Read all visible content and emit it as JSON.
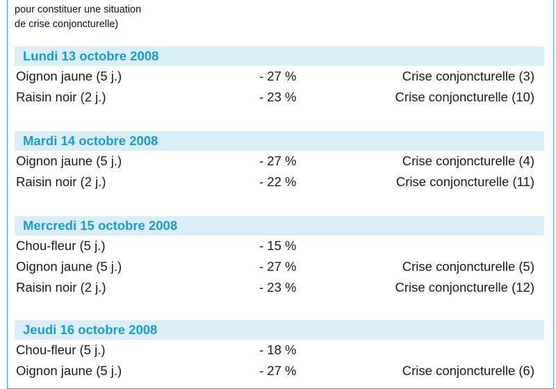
{
  "intro": {
    "line1": "pour constituer une situation",
    "line2": "de crise conjoncturelle)"
  },
  "sections": [
    {
      "day": "Lundi 13 octobre 2008",
      "rows": [
        {
          "product": "Oignon jaune (5 j.)",
          "variation": "- 27 %",
          "status": "Crise conjoncturelle (3)"
        },
        {
          "product": "Raisin noir (2 j.)",
          "variation": "- 23 %",
          "status": "Crise conjoncturelle (10)"
        }
      ]
    },
    {
      "day": "Mardi 14 octobre 2008",
      "rows": [
        {
          "product": "Oignon jaune (5 j.)",
          "variation": "- 27 %",
          "status": "Crise conjoncturelle (4)"
        },
        {
          "product": "Raisin noir (2 j.)",
          "variation": "- 22 %",
          "status": "Crise conjoncturelle (11)"
        }
      ]
    },
    {
      "day": "Mercredi 15 octobre 2008",
      "rows": [
        {
          "product": "Chou-fleur (5 j.)",
          "variation": "- 15 %",
          "status": ""
        },
        {
          "product": "Oignon jaune (5 j.)",
          "variation": "- 27 %",
          "status": "Crise conjoncturelle (5)"
        },
        {
          "product": "Raisin noir (2 j.)",
          "variation": "- 23 %",
          "status": "Crise conjoncturelle (12)"
        }
      ]
    },
    {
      "day": "Jeudi 16 octobre 2008",
      "rows": [
        {
          "product": "Chou-fleur (5 j.)",
          "variation": "- 18 %",
          "status": ""
        },
        {
          "product": "Oignon jaune (5 j.)",
          "variation": "- 27 %",
          "status": "Crise conjoncturelle (6)"
        }
      ]
    }
  ]
}
